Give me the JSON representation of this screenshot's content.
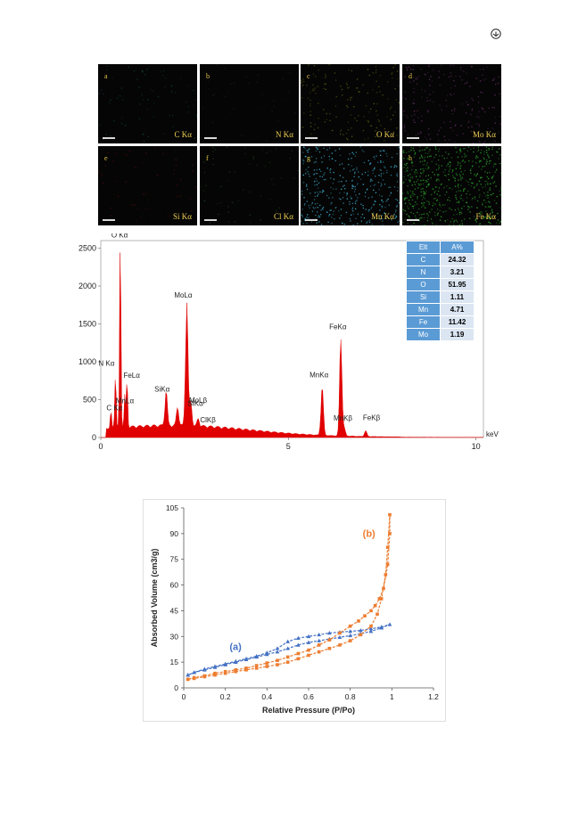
{
  "maps": [
    {
      "letter": "a",
      "label": "C Kα",
      "color": "#0e3838",
      "density": 0.08
    },
    {
      "letter": "b",
      "label": "N Kα",
      "color": "#1c1c1c",
      "density": 0.05
    },
    {
      "letter": "c",
      "label": "O Kα",
      "color": "#5a5a14",
      "density": 0.18
    },
    {
      "letter": "d",
      "label": "Mo Kα",
      "color": "#5a2a5a",
      "density": 0.22
    },
    {
      "letter": "e",
      "label": "Si Kα",
      "color": "#4a0a0a",
      "density": 0.06
    },
    {
      "letter": "f",
      "label": "Cl Kα",
      "color": "#1a3a1a",
      "density": 0.06
    },
    {
      "letter": "g",
      "label": "Mn Kα",
      "color": "#3aa8c8",
      "density": 0.45
    },
    {
      "letter": "h",
      "label": "Fe Kα",
      "color": "#2a9a2a",
      "density": 0.7
    }
  ],
  "chart_data": [
    {
      "type": "area",
      "xlabel": "keV",
      "xlim": [
        0,
        10.2
      ],
      "ylim": [
        0,
        2600
      ],
      "x_ticks": [
        0,
        5,
        10
      ],
      "y_ticks": [
        0,
        500,
        1000,
        1500,
        2000,
        2500
      ],
      "fill_color": "#e00000",
      "peaks": [
        {
          "label": "C Kα",
          "x": 0.27,
          "y": 310
        },
        {
          "label": "N Kα",
          "x": 0.39,
          "y": 900
        },
        {
          "label": "O Kα",
          "x": 0.52,
          "y": 2620
        },
        {
          "label": "FeLα",
          "x": 0.7,
          "y": 720
        },
        {
          "label": "MnLα",
          "x": 0.64,
          "y": 500
        },
        {
          "label": "SiKα",
          "x": 1.74,
          "y": 560
        },
        {
          "label": "MoLα",
          "x": 2.29,
          "y": 1800
        },
        {
          "label": "MoLβ",
          "x": 2.4,
          "y": 400
        },
        {
          "label": "SIKα",
          "x": 2.05,
          "y": 350
        },
        {
          "label": "ClKβ",
          "x": 2.6,
          "y": 200
        },
        {
          "label": "MnKα",
          "x": 5.9,
          "y": 750
        },
        {
          "label": "FeKα",
          "x": 6.4,
          "y": 1380
        },
        {
          "label": "MnKβ",
          "x": 6.49,
          "y": 200
        },
        {
          "label": "FeKβ",
          "x": 7.06,
          "y": 180
        }
      ],
      "table": {
        "header": [
          "Elt",
          "A%"
        ],
        "rows": [
          [
            "C",
            "24.32"
          ],
          [
            "N",
            "3.21"
          ],
          [
            "O",
            "51.95"
          ],
          [
            "Si",
            "1.11"
          ],
          [
            "Mn",
            "4.71"
          ],
          [
            "Fe",
            "11.42"
          ],
          [
            "Mo",
            "1.19"
          ]
        ]
      }
    },
    {
      "type": "line",
      "xlabel": "Relative Pressure (P/Po)",
      "ylabel": "Absorbed Volume (cm3/g)",
      "xlim": [
        0,
        1.2
      ],
      "ylim": [
        0,
        105
      ],
      "x_ticks": [
        "0",
        "0.2",
        "0.4",
        "0.6",
        "0.8",
        "1",
        "1.2"
      ],
      "y_ticks": [
        "0",
        "15",
        "30",
        "45",
        "60",
        "75",
        "90",
        "105"
      ],
      "annotations": [
        {
          "text": "(a)",
          "x": 0.22,
          "y": 22,
          "color": "#4472c4"
        },
        {
          "text": "(b)",
          "x": 0.86,
          "y": 88,
          "color": "#ed7d31"
        }
      ],
      "series": [
        {
          "name": "(a)",
          "color": "#4472c4",
          "marker": "triangle",
          "x": [
            0.02,
            0.05,
            0.1,
            0.15,
            0.2,
            0.25,
            0.3,
            0.35,
            0.4,
            0.45,
            0.5,
            0.55,
            0.6,
            0.65,
            0.7,
            0.75,
            0.8,
            0.85,
            0.9,
            0.95,
            0.99,
            0.95,
            0.9,
            0.85,
            0.8,
            0.75,
            0.7,
            0.65,
            0.6,
            0.55,
            0.5,
            0.45,
            0.4,
            0.35,
            0.3,
            0.25,
            0.2,
            0.15,
            0.1,
            0.05,
            0.02
          ],
          "y": [
            7.5,
            9,
            11,
            12.5,
            14,
            15.5,
            17,
            18.5,
            20.5,
            23,
            27,
            29,
            30,
            31,
            32,
            32.5,
            33,
            33.5,
            34.5,
            35.5,
            37,
            35,
            33,
            31.5,
            30.5,
            29.5,
            28.5,
            27.5,
            26.5,
            25,
            23,
            21,
            19.5,
            18,
            16.5,
            15,
            13.5,
            12,
            10.5,
            9,
            7.5
          ]
        },
        {
          "name": "(b)",
          "color": "#ed7d31",
          "marker": "square",
          "x": [
            0.02,
            0.05,
            0.1,
            0.15,
            0.2,
            0.25,
            0.3,
            0.35,
            0.4,
            0.45,
            0.5,
            0.55,
            0.6,
            0.65,
            0.7,
            0.75,
            0.8,
            0.85,
            0.9,
            0.93,
            0.95,
            0.97,
            0.98,
            0.99,
            0.99,
            0.98,
            0.96,
            0.94,
            0.92,
            0.9,
            0.87,
            0.84,
            0.8,
            0.75,
            0.7,
            0.65,
            0.6,
            0.55,
            0.5,
            0.45,
            0.4,
            0.35,
            0.3,
            0.25,
            0.2,
            0.15,
            0.1,
            0.05,
            0.02
          ],
          "y": [
            5,
            5.5,
            6.5,
            7.5,
            8.5,
            9.5,
            10.5,
            11.5,
            12.5,
            13.5,
            15,
            17,
            19,
            21,
            23,
            25,
            27.5,
            31,
            36,
            43,
            52,
            66,
            82,
            101,
            90,
            72,
            58,
            52,
            48,
            45,
            42,
            39,
            36,
            32,
            28,
            25,
            22,
            20,
            18,
            16,
            14.5,
            13,
            11.5,
            10.5,
            9.5,
            8.5,
            7,
            6,
            5
          ]
        }
      ]
    }
  ]
}
